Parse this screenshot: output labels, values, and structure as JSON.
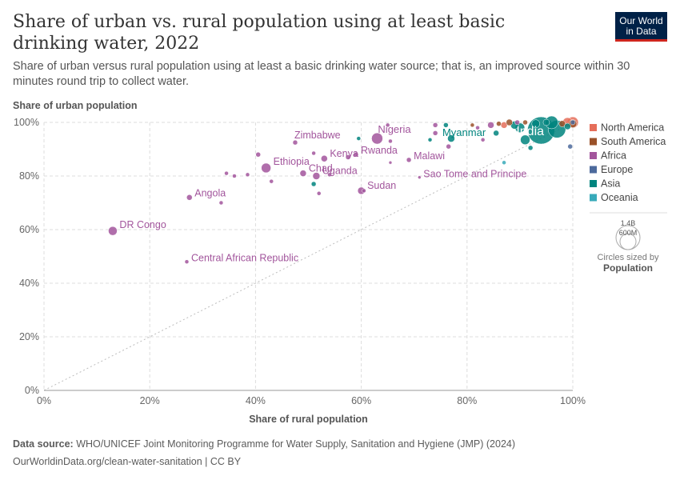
{
  "header": {
    "title": "Share of urban vs. rural population using at least basic drinking water, 2022",
    "subtitle": "Share of urban versus rural population using at least a basic drinking water source; that is, an improved source within 30 minutes round trip to collect water.",
    "logo_line1": "Our World",
    "logo_line2": "in Data"
  },
  "footer": {
    "source_label": "Data source:",
    "source_text": "WHO/UNICEF Joint Monitoring Programme for Water Supply, Sanitation and Hygiene (JMP) (2024)",
    "url_license": "OurWorldinData.org/clean-water-sanitation | CC BY"
  },
  "chart_data": {
    "type": "scatter",
    "title": "Share of urban vs. rural population using at least basic drinking water, 2022",
    "xlabel": "Share of rural population",
    "ylabel": "Share of urban population",
    "xlim": [
      0,
      100
    ],
    "ylim": [
      0,
      100
    ],
    "xticks": [
      "0%",
      "20%",
      "40%",
      "60%",
      "80%",
      "100%"
    ],
    "yticks": [
      "0%",
      "20%",
      "40%",
      "60%",
      "80%",
      "100%"
    ],
    "grid": true,
    "reference_line": "y = x",
    "legend": {
      "placement": "right",
      "entries": [
        {
          "name": "North America",
          "color": "#e56e5a"
        },
        {
          "name": "South America",
          "color": "#9a5129"
        },
        {
          "name": "Africa",
          "color": "#a2559c"
        },
        {
          "name": "Europe",
          "color": "#4c6a9c"
        },
        {
          "name": "Asia",
          "color": "#00847e"
        },
        {
          "name": "Oceania",
          "color": "#38aaba"
        }
      ],
      "size_legend": {
        "large": "1.4B",
        "small": "600M",
        "note": "Circles sized by",
        "variable": "Population"
      }
    },
    "colors": {
      "Africa": "#a2559c",
      "Asia": "#00847e",
      "North America": "#e56e5a",
      "South America": "#9a5129",
      "Europe": "#4c6a9c",
      "Oceania": "#38aaba"
    },
    "points": [
      {
        "label": "DR Congo",
        "x": 13,
        "y": 59.5,
        "region": "Africa",
        "r": 5.5
      },
      {
        "label": "Central African Republic",
        "x": 27,
        "y": 48,
        "region": "Africa",
        "r": 2.5
      },
      {
        "label": "Angola",
        "x": 27.5,
        "y": 72,
        "region": "Africa",
        "r": 3.5
      },
      {
        "label": "Ethiopia",
        "x": 42,
        "y": 83,
        "region": "Africa",
        "r": 6
      },
      {
        "label": "Chad",
        "x": 49,
        "y": 81,
        "region": "Africa",
        "r": 4
      },
      {
        "label": "Zimbabwe",
        "x": 47.5,
        "y": 92.5,
        "region": "Africa",
        "r": 3
      },
      {
        "label": "Kenya",
        "x": 53,
        "y": 86.5,
        "region": "Africa",
        "r": 4
      },
      {
        "label": "Uganda",
        "x": 51.5,
        "y": 80,
        "region": "Africa",
        "r": 4.5
      },
      {
        "label": "Rwanda",
        "x": 59,
        "y": 88,
        "region": "Africa",
        "r": 3
      },
      {
        "label": "Nigeria",
        "x": 63,
        "y": 94,
        "region": "Africa",
        "r": 7
      },
      {
        "label": "Sudan",
        "x": 60,
        "y": 74.5,
        "region": "Africa",
        "r": 4.5
      },
      {
        "label": "Malawi",
        "x": 69,
        "y": 86,
        "region": "Africa",
        "r": 3
      },
      {
        "label": "Sao Tome and Principe",
        "x": 71,
        "y": 79.5,
        "region": "Africa",
        "r": 2
      },
      {
        "label": "Myanmar",
        "x": 77,
        "y": 94,
        "region": "Asia",
        "r": 4.5
      },
      {
        "label": "India",
        "x": 94,
        "y": 97,
        "region": "Asia",
        "r": 17
      },
      {
        "label": "",
        "x": 34.5,
        "y": 81,
        "region": "Africa",
        "r": 2.5
      },
      {
        "label": "",
        "x": 36,
        "y": 80,
        "region": "Africa",
        "r": 2.5
      },
      {
        "label": "",
        "x": 38.5,
        "y": 80.5,
        "region": "Africa",
        "r": 2.5
      },
      {
        "label": "",
        "x": 40.5,
        "y": 88,
        "region": "Africa",
        "r": 3
      },
      {
        "label": "",
        "x": 43,
        "y": 78,
        "region": "Africa",
        "r": 2.5
      },
      {
        "label": "",
        "x": 33.5,
        "y": 70,
        "region": "Africa",
        "r": 2.5
      },
      {
        "label": "",
        "x": 51,
        "y": 77,
        "region": "Asia",
        "r": 3
      },
      {
        "label": "",
        "x": 52,
        "y": 73.5,
        "region": "Africa",
        "r": 2.5
      },
      {
        "label": "",
        "x": 54,
        "y": 80.5,
        "region": "Africa",
        "r": 2.5
      },
      {
        "label": "",
        "x": 51,
        "y": 88.5,
        "region": "Africa",
        "r": 2.5
      },
      {
        "label": "",
        "x": 57.5,
        "y": 87,
        "region": "Africa",
        "r": 3
      },
      {
        "label": "",
        "x": 59.5,
        "y": 94,
        "region": "Asia",
        "r": 2.5
      },
      {
        "label": "",
        "x": 60.5,
        "y": 74.5,
        "region": "Africa",
        "r": 2.5
      },
      {
        "label": "",
        "x": 65,
        "y": 99,
        "region": "Africa",
        "r": 2.5
      },
      {
        "label": "",
        "x": 65.5,
        "y": 93,
        "region": "Africa",
        "r": 2.5
      },
      {
        "label": "",
        "x": 65.5,
        "y": 85,
        "region": "Africa",
        "r": 2
      },
      {
        "label": "",
        "x": 73,
        "y": 93.5,
        "region": "Asia",
        "r": 2.5
      },
      {
        "label": "",
        "x": 74,
        "y": 99,
        "region": "Africa",
        "r": 3
      },
      {
        "label": "",
        "x": 74,
        "y": 96,
        "region": "Africa",
        "r": 3
      },
      {
        "label": "",
        "x": 76,
        "y": 99,
        "region": "Asia",
        "r": 3
      },
      {
        "label": "",
        "x": 76.5,
        "y": 91,
        "region": "Africa",
        "r": 3
      },
      {
        "label": "",
        "x": 81,
        "y": 99,
        "region": "South America",
        "r": 2.5
      },
      {
        "label": "",
        "x": 82,
        "y": 98,
        "region": "Africa",
        "r": 2.5
      },
      {
        "label": "",
        "x": 83,
        "y": 93.5,
        "region": "Africa",
        "r": 2.5
      },
      {
        "label": "",
        "x": 84.5,
        "y": 99,
        "region": "Africa",
        "r": 4
      },
      {
        "label": "",
        "x": 85.5,
        "y": 96,
        "region": "Asia",
        "r": 3.5
      },
      {
        "label": "",
        "x": 86,
        "y": 99.5,
        "region": "South America",
        "r": 3
      },
      {
        "label": "",
        "x": 87,
        "y": 99,
        "region": "North America",
        "r": 4
      },
      {
        "label": "",
        "x": 87,
        "y": 85,
        "region": "Oceania",
        "r": 2.5
      },
      {
        "label": "",
        "x": 88,
        "y": 100,
        "region": "South America",
        "r": 4
      },
      {
        "label": "",
        "x": 89,
        "y": 99,
        "region": "Asia",
        "r": 5
      },
      {
        "label": "",
        "x": 89.5,
        "y": 100,
        "region": "Africa",
        "r": 3
      },
      {
        "label": "",
        "x": 90,
        "y": 98,
        "region": "Asia",
        "r": 6
      },
      {
        "label": "",
        "x": 91,
        "y": 100,
        "region": "South America",
        "r": 3
      },
      {
        "label": "",
        "x": 91,
        "y": 93.5,
        "region": "Asia",
        "r": 6
      },
      {
        "label": "",
        "x": 92,
        "y": 90.5,
        "region": "Asia",
        "r": 3
      },
      {
        "label": "",
        "x": 93,
        "y": 99.5,
        "region": "Asia",
        "r": 5
      },
      {
        "label": "",
        "x": 95,
        "y": 100,
        "region": "Asia",
        "r": 4
      },
      {
        "label": "",
        "x": 96,
        "y": 100,
        "region": "Asia",
        "r": 8
      },
      {
        "label": "",
        "x": 97,
        "y": 97.5,
        "region": "Asia",
        "r": 11
      },
      {
        "label": "",
        "x": 98,
        "y": 99.5,
        "region": "South America",
        "r": 4
      },
      {
        "label": "",
        "x": 99,
        "y": 100,
        "region": "North America",
        "r": 6
      },
      {
        "label": "",
        "x": 99,
        "y": 98.5,
        "region": "Asia",
        "r": 4
      },
      {
        "label": "",
        "x": 99.5,
        "y": 91,
        "region": "Europe",
        "r": 3
      },
      {
        "label": "",
        "x": 100,
        "y": 100,
        "region": "North America",
        "r": 7
      },
      {
        "label": "",
        "x": 100,
        "y": 99.5,
        "region": "South America",
        "r": 5
      },
      {
        "label": "",
        "x": 100,
        "y": 100,
        "region": "Europe",
        "r": 3
      }
    ]
  }
}
